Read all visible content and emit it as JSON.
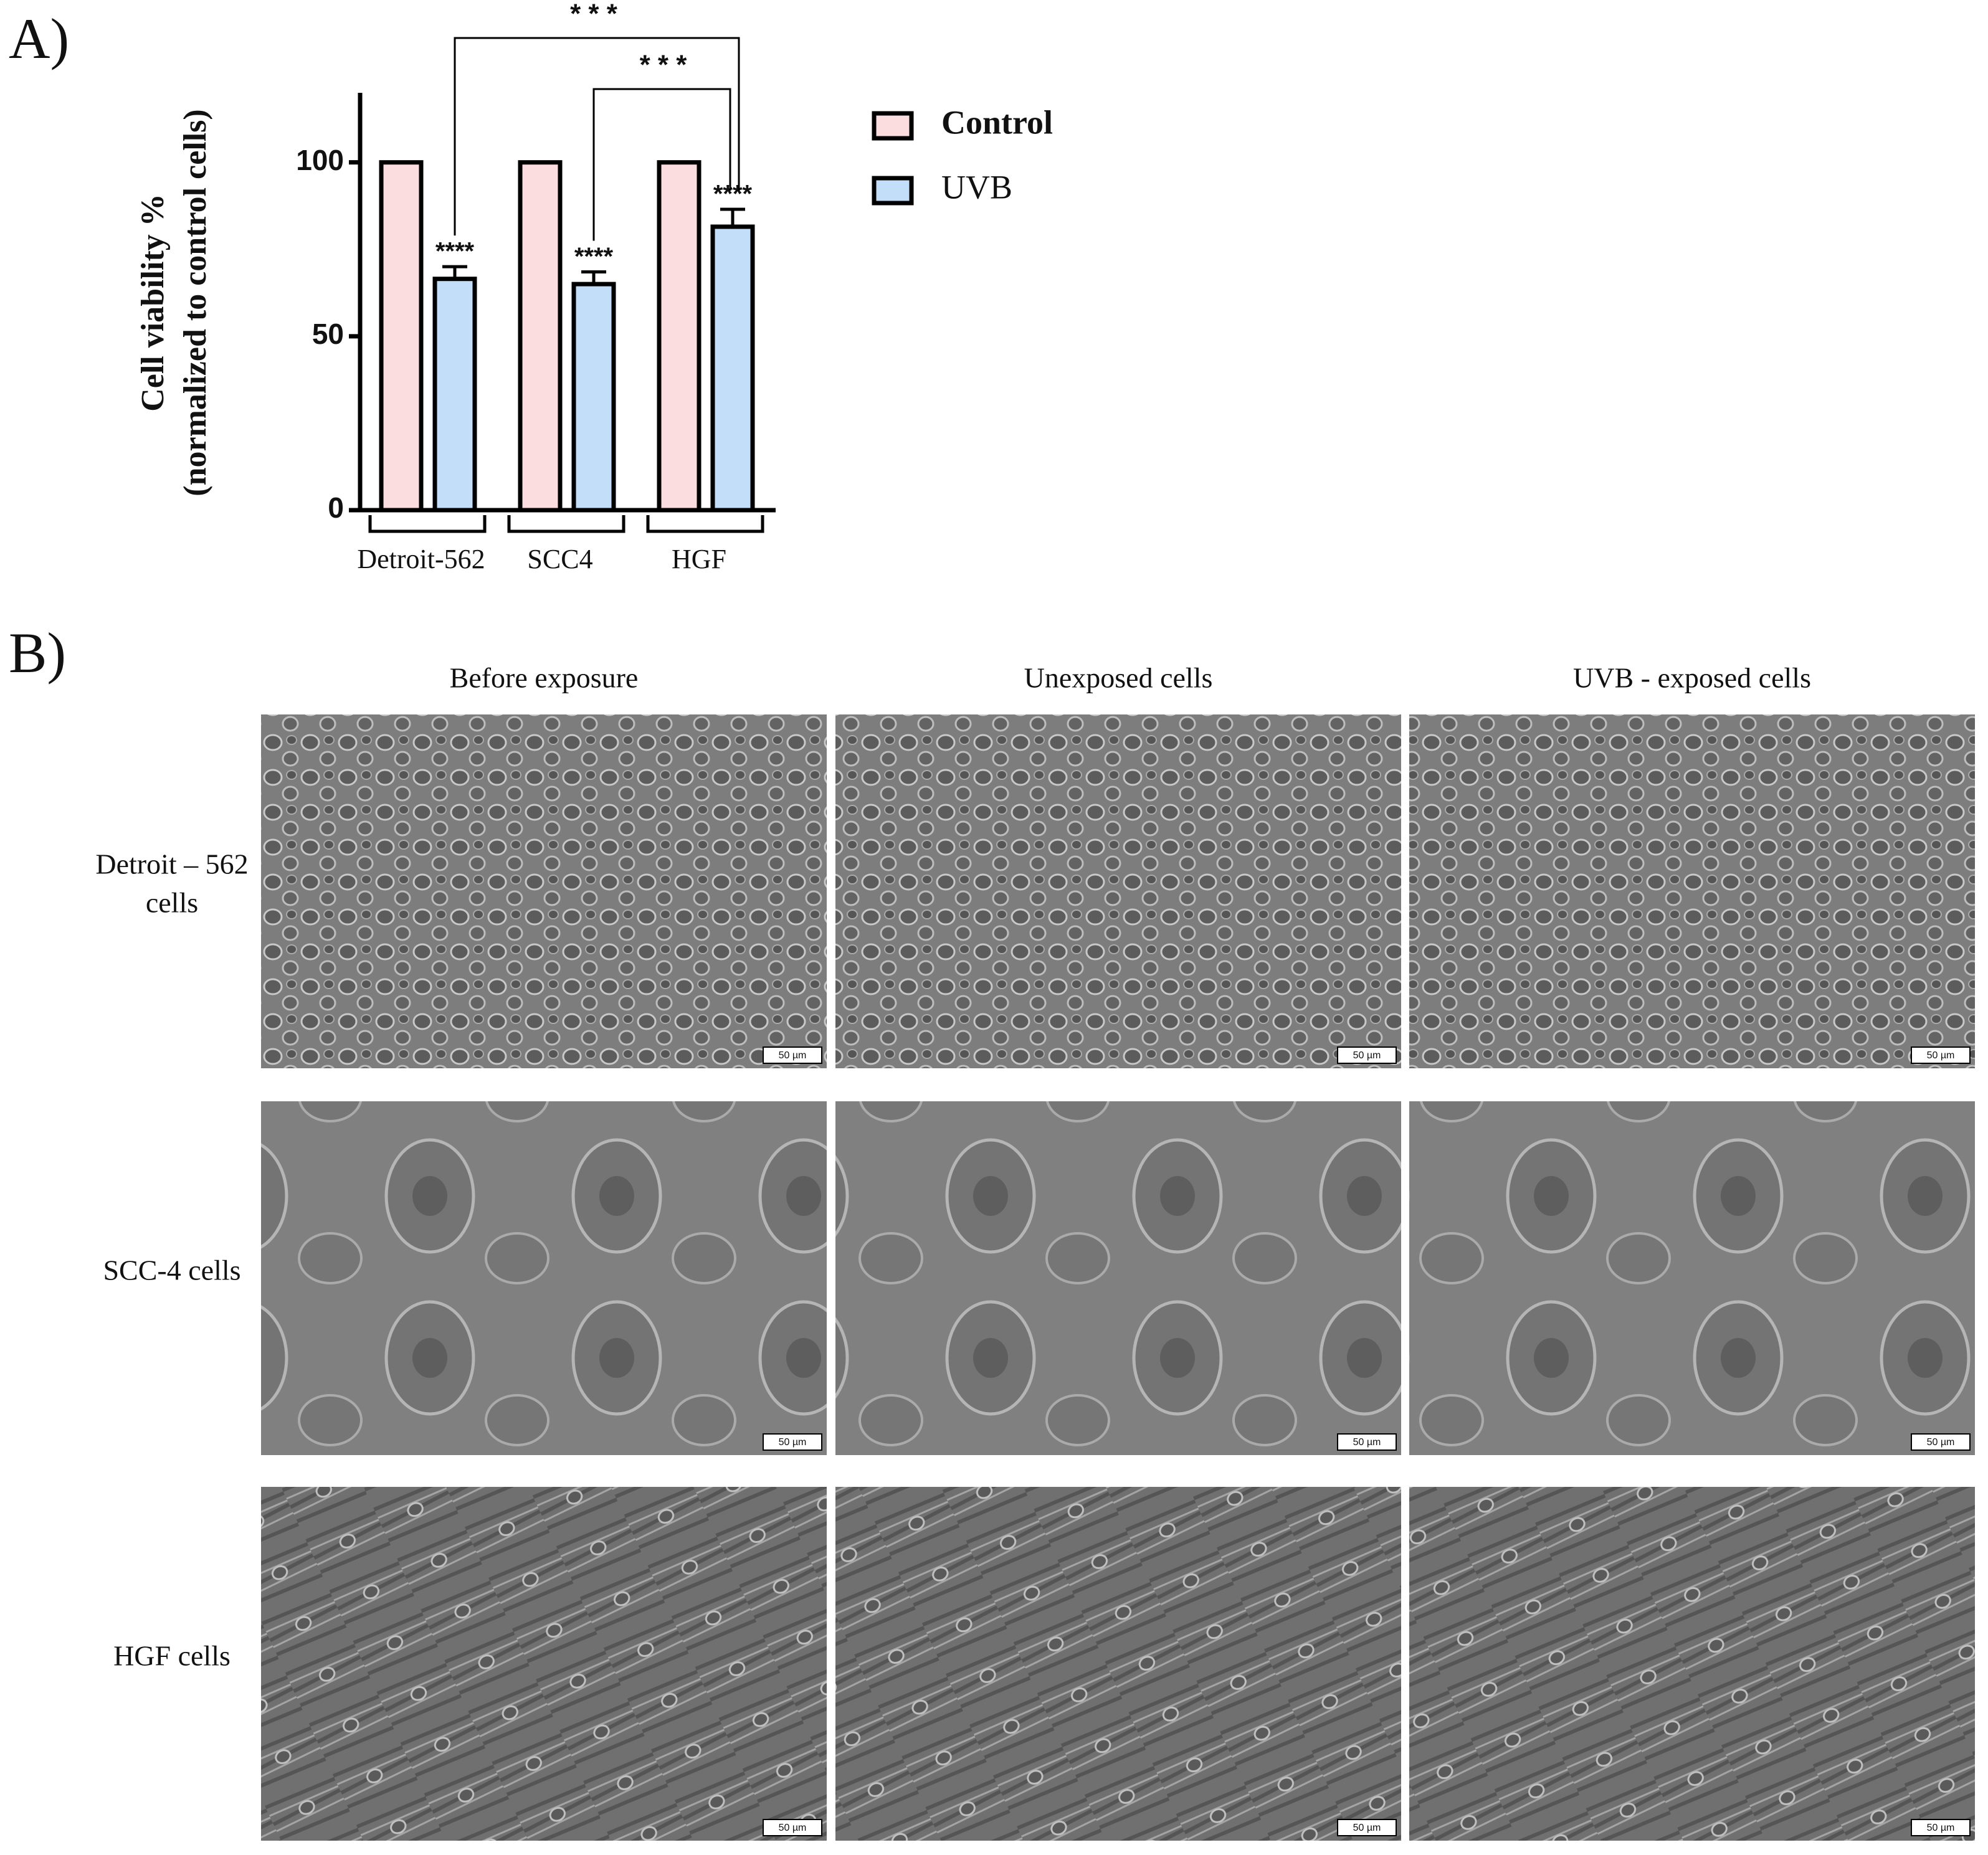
{
  "chart_data": {
    "type": "bar",
    "panel_label": "A)",
    "ylabel": [
      "Cell viability %",
      "(normalized to control cells)"
    ],
    "categories": [
      "Detroit-562",
      "SCC4",
      "HGF"
    ],
    "series": [
      {
        "name": "Control",
        "color": "#fbdde0",
        "values": [
          100,
          100,
          100
        ]
      },
      {
        "name": "UVB",
        "color": "#c3def8",
        "values": [
          66.5,
          65,
          81.5
        ],
        "errors": [
          3.5,
          3.5,
          5
        ],
        "annotations": [
          "****",
          "****",
          "****"
        ]
      }
    ],
    "comparisons": [
      {
        "categories": [
          0,
          2
        ],
        "label": "* * *"
      },
      {
        "categories": [
          1,
          2
        ],
        "label": "* * *"
      }
    ],
    "ylim": [
      0,
      120
    ],
    "yticks": [
      0,
      50,
      100
    ],
    "grid": false,
    "legend": "right"
  },
  "panel_b": {
    "panel_label": "B)",
    "columns": [
      "Before exposure",
      "Unexposed cells",
      "UVB - exposed cells"
    ],
    "rows": [
      [
        "Detroit – 562",
        "cells"
      ],
      [
        "SCC-4 cells"
      ],
      [
        "HGF cells"
      ]
    ],
    "scale_bar": "50 µm"
  }
}
